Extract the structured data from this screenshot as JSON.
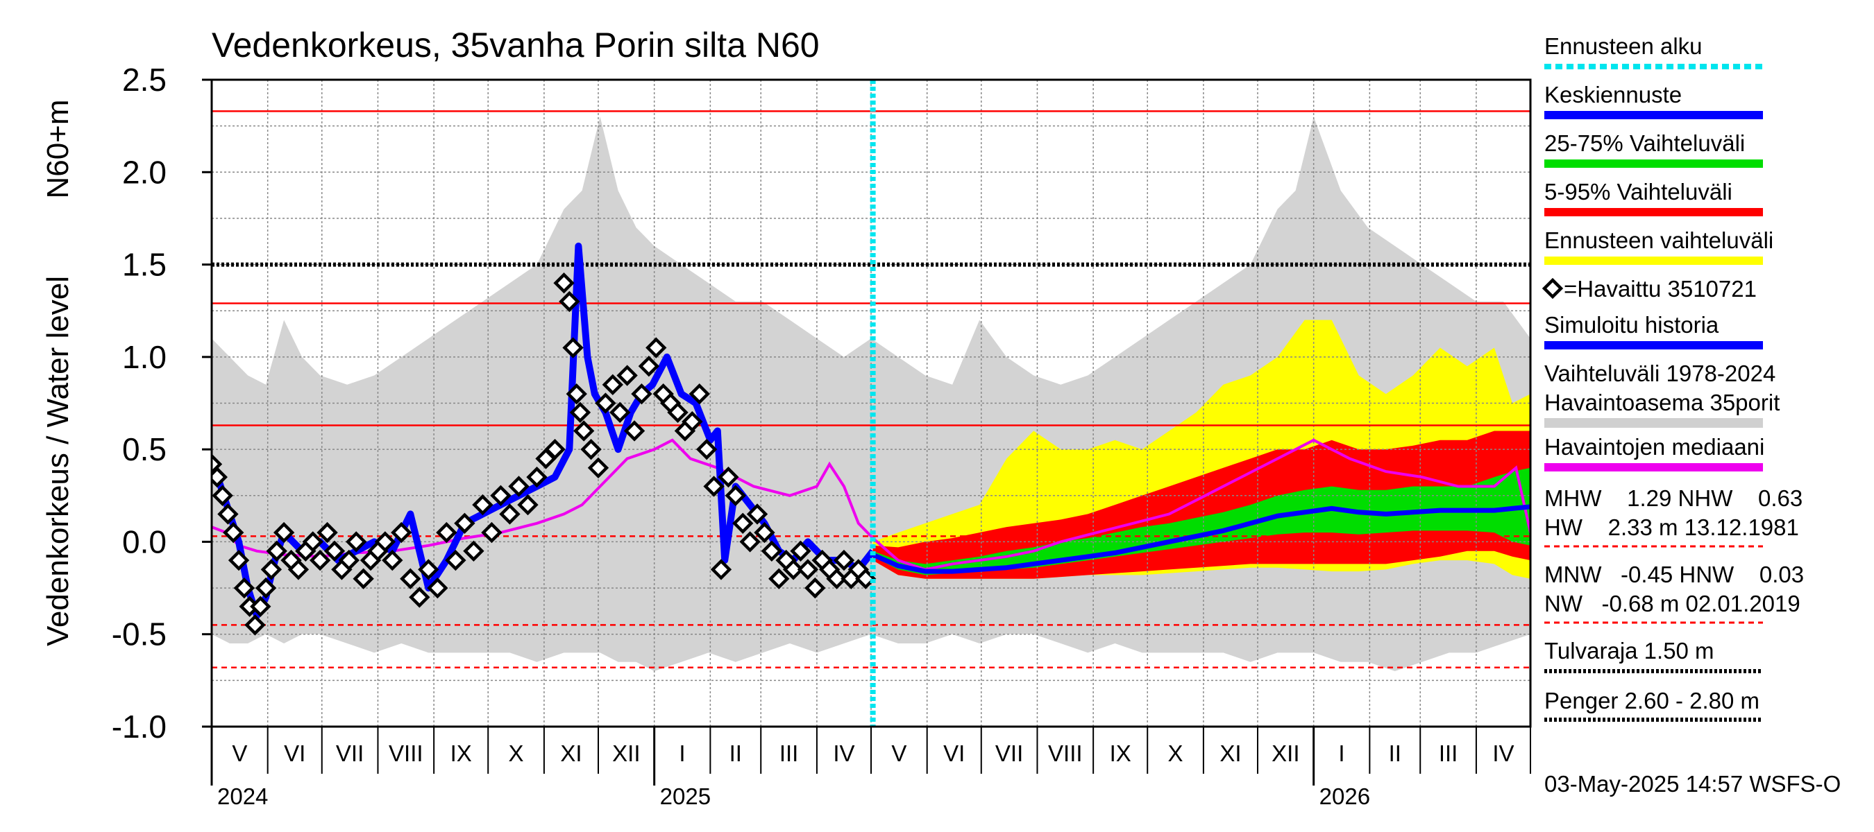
{
  "chart_data": {
    "type": "line",
    "title": "Vedenkorkeus, 35vanha Porin silta N60",
    "ylabel_primary": "Vedenkorkeus / Water level",
    "ylabel_secondary": "N60+m",
    "ylim": [
      -1.0,
      2.5
    ],
    "yticks": [
      -1.0,
      -0.5,
      0.0,
      0.5,
      1.0,
      1.5,
      2.0,
      2.5
    ],
    "ytick_labels": [
      "-1.0",
      "-0.5",
      "0.0",
      "0.5",
      "1.0",
      "1.5",
      "2.0",
      "2.5"
    ],
    "x_range_days": [
      0,
      730
    ],
    "months": [
      {
        "label": "V",
        "start": 0
      },
      {
        "label": "VI",
        "start": 31
      },
      {
        "label": "VII",
        "start": 61
      },
      {
        "label": "VIII",
        "start": 92
      },
      {
        "label": "IX",
        "start": 123
      },
      {
        "label": "X",
        "start": 153
      },
      {
        "label": "XI",
        "start": 184
      },
      {
        "label": "XII",
        "start": 214
      },
      {
        "label": "I",
        "start": 245
      },
      {
        "label": "II",
        "start": 276
      },
      {
        "label": "III",
        "start": 304
      },
      {
        "label": "IV",
        "start": 335
      },
      {
        "label": "V",
        "start": 365
      },
      {
        "label": "VI",
        "start": 396
      },
      {
        "label": "VII",
        "start": 426
      },
      {
        "label": "VIII",
        "start": 457
      },
      {
        "label": "IX",
        "start": 488
      },
      {
        "label": "X",
        "start": 518
      },
      {
        "label": "XI",
        "start": 549
      },
      {
        "label": "XII",
        "start": 579
      },
      {
        "label": "I",
        "start": 610
      },
      {
        "label": "II",
        "start": 641
      },
      {
        "label": "III",
        "start": 669
      },
      {
        "label": "IV",
        "start": 700
      }
    ],
    "month_end": 730,
    "years": [
      {
        "label": "2024",
        "day": 0
      },
      {
        "label": "2025",
        "day": 245
      },
      {
        "label": "2026",
        "day": 610
      }
    ],
    "forecast_start_day": 366,
    "reference_lines": [
      {
        "name": "HW",
        "value": 2.33,
        "style": "solid",
        "color": "#ff0000"
      },
      {
        "name": "Tulvaraja",
        "value": 1.5,
        "style": "dotted",
        "color": "#000000"
      },
      {
        "name": "MHW",
        "value": 1.29,
        "style": "solid",
        "color": "#ff0000"
      },
      {
        "name": "NHW",
        "value": 0.63,
        "style": "solid",
        "color": "#ff0000"
      },
      {
        "name": "HNW",
        "value": 0.03,
        "style": "dashed",
        "color": "#ff0000"
      },
      {
        "name": "MNW",
        "value": -0.45,
        "style": "dashed",
        "color": "#ff0000"
      },
      {
        "name": "NW",
        "value": -0.68,
        "style": "dashed",
        "color": "#ff0000"
      }
    ],
    "history_band": {
      "days": [
        0,
        10,
        20,
        30,
        40,
        50,
        60,
        75,
        90,
        105,
        120,
        135,
        150,
        165,
        180,
        195,
        205,
        215,
        225,
        235,
        245,
        260,
        275,
        290,
        305,
        320,
        335,
        350,
        365,
        380,
        395,
        410,
        425,
        440,
        455,
        470,
        485,
        500,
        515,
        530,
        545,
        560,
        575,
        590,
        600,
        610,
        625,
        640,
        655,
        670,
        685,
        700,
        715,
        730
      ],
      "upper": [
        1.1,
        1.0,
        0.9,
        0.85,
        1.2,
        1.0,
        0.9,
        0.85,
        0.9,
        1.0,
        1.1,
        1.2,
        1.3,
        1.4,
        1.5,
        1.8,
        1.9,
        2.3,
        1.9,
        1.7,
        1.6,
        1.5,
        1.4,
        1.3,
        1.3,
        1.2,
        1.1,
        1.0,
        1.1,
        1.0,
        0.9,
        0.85,
        1.2,
        1.0,
        0.9,
        0.85,
        0.9,
        1.0,
        1.1,
        1.2,
        1.3,
        1.4,
        1.5,
        1.8,
        1.9,
        2.3,
        1.9,
        1.7,
        1.6,
        1.5,
        1.4,
        1.3,
        1.3,
        1.1
      ],
      "lower": [
        -0.5,
        -0.55,
        -0.55,
        -0.5,
        -0.55,
        -0.5,
        -0.5,
        -0.55,
        -0.6,
        -0.55,
        -0.6,
        -0.6,
        -0.6,
        -0.6,
        -0.65,
        -0.6,
        -0.6,
        -0.6,
        -0.65,
        -0.65,
        -0.7,
        -0.65,
        -0.6,
        -0.65,
        -0.6,
        -0.55,
        -0.6,
        -0.55,
        -0.5,
        -0.55,
        -0.55,
        -0.5,
        -0.55,
        -0.5,
        -0.5,
        -0.55,
        -0.6,
        -0.55,
        -0.6,
        -0.6,
        -0.6,
        -0.6,
        -0.65,
        -0.6,
        -0.6,
        -0.6,
        -0.65,
        -0.65,
        -0.7,
        -0.65,
        -0.6,
        -0.6,
        -0.55,
        -0.5
      ]
    },
    "forecast_bands": {
      "days": [
        366,
        380,
        395,
        410,
        425,
        440,
        455,
        470,
        485,
        500,
        515,
        530,
        545,
        560,
        575,
        590,
        605,
        620,
        635,
        650,
        665,
        680,
        695,
        710,
        720,
        730
      ],
      "p100_hi": [
        0.0,
        0.05,
        0.1,
        0.15,
        0.2,
        0.45,
        0.6,
        0.5,
        0.5,
        0.55,
        0.5,
        0.6,
        0.7,
        0.85,
        0.9,
        1.0,
        1.2,
        1.2,
        0.9,
        0.8,
        0.9,
        1.05,
        0.95,
        1.05,
        0.75,
        0.8
      ],
      "p95_hi": [
        -0.02,
        -0.03,
        0.0,
        0.02,
        0.05,
        0.08,
        0.1,
        0.12,
        0.15,
        0.2,
        0.25,
        0.3,
        0.35,
        0.4,
        0.45,
        0.5,
        0.5,
        0.55,
        0.5,
        0.5,
        0.52,
        0.55,
        0.55,
        0.6,
        0.6,
        0.6
      ],
      "p75_hi": [
        -0.05,
        -0.1,
        -0.12,
        -0.1,
        -0.08,
        -0.05,
        -0.03,
        0.0,
        0.02,
        0.05,
        0.08,
        0.1,
        0.13,
        0.16,
        0.2,
        0.25,
        0.28,
        0.3,
        0.28,
        0.28,
        0.3,
        0.3,
        0.3,
        0.35,
        0.38,
        0.4
      ],
      "p25_lo": [
        -0.08,
        -0.15,
        -0.18,
        -0.17,
        -0.16,
        -0.15,
        -0.14,
        -0.12,
        -0.1,
        -0.08,
        -0.06,
        -0.04,
        -0.02,
        0.0,
        0.02,
        0.04,
        0.05,
        0.05,
        0.04,
        0.05,
        0.06,
        0.06,
        0.06,
        0.05,
        0.0,
        -0.02
      ],
      "p5_lo": [
        -0.1,
        -0.18,
        -0.2,
        -0.2,
        -0.2,
        -0.2,
        -0.2,
        -0.19,
        -0.18,
        -0.17,
        -0.16,
        -0.15,
        -0.14,
        -0.13,
        -0.12,
        -0.12,
        -0.12,
        -0.12,
        -0.12,
        -0.12,
        -0.1,
        -0.08,
        -0.05,
        -0.05,
        -0.08,
        -0.1
      ],
      "p0_lo": [
        -0.1,
        -0.18,
        -0.2,
        -0.2,
        -0.2,
        -0.2,
        -0.2,
        -0.19,
        -0.18,
        -0.18,
        -0.18,
        -0.17,
        -0.16,
        -0.15,
        -0.14,
        -0.14,
        -0.15,
        -0.16,
        -0.16,
        -0.15,
        -0.12,
        -0.1,
        -0.1,
        -0.12,
        -0.18,
        -0.2
      ]
    },
    "forecast_median": {
      "days": [
        366,
        380,
        395,
        410,
        425,
        440,
        455,
        470,
        485,
        500,
        515,
        530,
        545,
        560,
        575,
        590,
        605,
        620,
        635,
        650,
        665,
        680,
        695,
        710,
        720,
        730
      ],
      "values": [
        -0.07,
        -0.13,
        -0.16,
        -0.16,
        -0.15,
        -0.14,
        -0.12,
        -0.1,
        -0.08,
        -0.06,
        -0.03,
        0.0,
        0.03,
        0.06,
        0.1,
        0.14,
        0.16,
        0.18,
        0.16,
        0.15,
        0.16,
        0.17,
        0.17,
        0.17,
        0.18,
        0.19
      ]
    },
    "observation_median": {
      "days": [
        0,
        8,
        15,
        25,
        40,
        60,
        80,
        100,
        120,
        140,
        160,
        180,
        195,
        205,
        215,
        230,
        245,
        255,
        265,
        280,
        300,
        320,
        335,
        342,
        350,
        358,
        366,
        380,
        395,
        410,
        425,
        440,
        455,
        470,
        490,
        510,
        530,
        550,
        570,
        590,
        610,
        630,
        650,
        670,
        690,
        710,
        722,
        730
      ],
      "values": [
        0.08,
        0.05,
        -0.02,
        -0.05,
        -0.07,
        -0.08,
        -0.06,
        -0.05,
        -0.02,
        0.02,
        0.05,
        0.1,
        0.15,
        0.2,
        0.3,
        0.45,
        0.5,
        0.55,
        0.45,
        0.4,
        0.3,
        0.25,
        0.3,
        0.42,
        0.3,
        0.1,
        0.02,
        -0.1,
        -0.15,
        -0.12,
        -0.1,
        -0.08,
        -0.05,
        0.0,
        0.05,
        0.1,
        0.15,
        0.25,
        0.35,
        0.45,
        0.55,
        0.45,
        0.38,
        0.35,
        0.3,
        0.3,
        0.4,
        0.05
      ]
    },
    "simulated_history": {
      "days": [
        0,
        5,
        10,
        15,
        20,
        25,
        30,
        35,
        40,
        50,
        60,
        70,
        80,
        90,
        100,
        110,
        120,
        130,
        140,
        150,
        160,
        170,
        180,
        190,
        198,
        203,
        208,
        212,
        218,
        225,
        232,
        238,
        244,
        252,
        260,
        268,
        276,
        280,
        284,
        290,
        298,
        306,
        314,
        322,
        330,
        340,
        350,
        358,
        366
      ],
      "values": [
        0.45,
        0.3,
        0.15,
        0.0,
        -0.25,
        -0.4,
        -0.3,
        -0.1,
        0.05,
        -0.05,
        0.0,
        -0.1,
        -0.05,
        0.0,
        -0.05,
        0.15,
        -0.25,
        -0.1,
        0.1,
        0.15,
        0.2,
        0.25,
        0.3,
        0.35,
        0.5,
        1.6,
        1.0,
        0.8,
        0.7,
        0.5,
        0.7,
        0.8,
        0.85,
        1.0,
        0.8,
        0.75,
        0.55,
        0.6,
        -0.1,
        0.3,
        0.2,
        0.1,
        -0.05,
        -0.1,
        0.0,
        -0.1,
        -0.1,
        -0.15,
        -0.05
      ]
    },
    "observed": {
      "days": [
        0,
        3,
        6,
        9,
        12,
        15,
        18,
        21,
        24,
        27,
        30,
        33,
        36,
        40,
        44,
        48,
        52,
        56,
        60,
        64,
        68,
        72,
        76,
        80,
        84,
        88,
        92,
        96,
        100,
        105,
        110,
        115,
        120,
        125,
        130,
        135,
        140,
        145,
        150,
        155,
        160,
        165,
        170,
        175,
        180,
        185,
        190,
        195,
        198,
        200,
        202,
        204,
        206,
        210,
        214,
        218,
        222,
        226,
        230,
        234,
        238,
        242,
        246,
        250,
        254,
        258,
        262,
        266,
        270,
        274,
        278,
        282,
        286,
        290,
        294,
        298,
        302,
        306,
        310,
        314,
        318,
        322,
        326,
        330,
        334,
        338,
        342,
        346,
        350,
        354,
        358,
        362
      ],
      "values": [
        0.42,
        0.35,
        0.25,
        0.15,
        0.05,
        -0.1,
        -0.25,
        -0.35,
        -0.45,
        -0.35,
        -0.25,
        -0.15,
        -0.05,
        0.05,
        -0.1,
        -0.15,
        -0.05,
        0.0,
        -0.1,
        0.05,
        -0.05,
        -0.15,
        -0.1,
        0.0,
        -0.2,
        -0.1,
        -0.05,
        0.0,
        -0.1,
        0.05,
        -0.2,
        -0.3,
        -0.15,
        -0.25,
        0.05,
        -0.1,
        0.1,
        -0.05,
        0.2,
        0.05,
        0.25,
        0.15,
        0.3,
        0.2,
        0.35,
        0.45,
        0.5,
        1.4,
        1.3,
        1.05,
        0.8,
        0.7,
        0.6,
        0.5,
        0.4,
        0.75,
        0.85,
        0.7,
        0.9,
        0.6,
        0.8,
        0.95,
        1.05,
        0.8,
        0.75,
        0.7,
        0.6,
        0.65,
        0.8,
        0.5,
        0.3,
        -0.15,
        0.35,
        0.25,
        0.1,
        0.0,
        0.15,
        0.05,
        -0.05,
        -0.2,
        -0.1,
        -0.15,
        -0.05,
        -0.15,
        -0.25,
        -0.1,
        -0.15,
        -0.2,
        -0.1,
        -0.2,
        -0.15,
        -0.2
      ]
    },
    "legend": [
      {
        "label": "Ennusteen alku",
        "color": "#00e5ee",
        "style": "dotted"
      },
      {
        "label": "Keskiennuste",
        "color": "#0000ff",
        "style": "solid"
      },
      {
        "label": "25-75% Vaihteluväli",
        "color": "#00dd00",
        "style": "solid"
      },
      {
        "label": "5-95% Vaihteluväli",
        "color": "#ff0000",
        "style": "solid"
      },
      {
        "label": "Ennusteen vaihteluväli",
        "color": "#ffff00",
        "style": "solid"
      },
      {
        "label": "=Havaittu 3510721",
        "color": "#000000",
        "style": "marker"
      },
      {
        "label": "Simuloitu historia",
        "color": "#0000ff",
        "style": "solid"
      },
      {
        "label": "Vaihteluväli 1978-2024",
        "label2": " Havaintoasema 35porit",
        "color": "#d0d0d0",
        "style": "solid"
      },
      {
        "label": "Havaintojen mediaani",
        "color": "#ee00ee",
        "style": "solid"
      }
    ],
    "stats": [
      {
        "line": "MHW    1.29 NHW    0.63"
      },
      {
        "line": "HW    2.33 m 13.12.1981"
      },
      {
        "line": "MNW   -0.45 HNW    0.03"
      },
      {
        "line": "NW   -0.68 m 02.01.2019"
      }
    ],
    "thresholds": [
      {
        "label": "Tulvaraja 1.50 m"
      },
      {
        "label": "Penger 2.60 - 2.80 m"
      }
    ],
    "footer": "03-May-2025 14:57 WSFS-O"
  }
}
